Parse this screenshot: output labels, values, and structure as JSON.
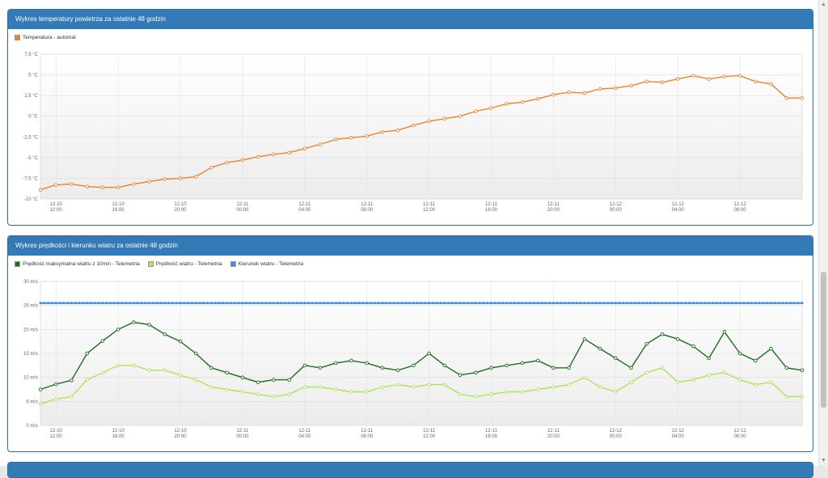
{
  "colors": {
    "header": "#337ab7",
    "temp": "#e8842f",
    "wind_max": "#1e6b1e",
    "wind": "#aee35a",
    "direction": "#3a8ee6"
  },
  "panel1": {
    "title": "Wykres temperatury powietrza za ostatnie 48 godzin",
    "legend": [
      "Temperatura - automat"
    ]
  },
  "panel2": {
    "title": "Wykres prędkości i kierunku wiatru za ostatnie 48 godzin",
    "legend": [
      "Prędkość maksymalna wiatru z 10min - Telemetria",
      "Prędkość wiatru - Telemetria",
      "Kierunek wiatru - Telemetria"
    ]
  },
  "chart_data": [
    {
      "type": "line",
      "title": "Wykres temperatury powietrza za ostatnie 48 godzin",
      "x_ticks": [
        [
          "12-10",
          "12:00"
        ],
        [
          "12-10",
          "16:00"
        ],
        [
          "12-10",
          "20:00"
        ],
        [
          "12-11",
          "00:00"
        ],
        [
          "12-11",
          "04:00"
        ],
        [
          "12-11",
          "08:00"
        ],
        [
          "12-11",
          "12:00"
        ],
        [
          "12-11",
          "16:00"
        ],
        [
          "12-11",
          "20:00"
        ],
        [
          "12-12",
          "00:00"
        ],
        [
          "12-12",
          "04:00"
        ],
        [
          "12-12",
          "08:00"
        ]
      ],
      "y_ticks": [
        "7,5 °C",
        "5 °C",
        "2,5 °C",
        "0 °C",
        "-2,5 °C",
        "-5 °C",
        "-7,5 °C",
        "-10 °C"
      ],
      "ylim": [
        -10,
        7.5
      ],
      "x_hours": [
        11,
        60
      ],
      "grid": true,
      "legend_position": "top-left",
      "series": [
        {
          "name": "Temperatura - automat",
          "color": "#e8842f",
          "x": [
            11,
            12,
            13,
            14,
            15,
            16,
            17,
            18,
            19,
            20,
            21,
            22,
            23,
            24,
            25,
            26,
            27,
            28,
            29,
            30,
            31,
            32,
            33,
            34,
            35,
            36,
            37,
            38,
            39,
            40,
            41,
            42,
            43,
            44,
            45,
            46,
            47,
            48,
            49,
            50,
            51,
            52,
            53,
            54,
            55,
            56,
            57,
            58,
            59,
            60
          ],
          "values": [
            -8.9,
            -8.3,
            -8.2,
            -8.5,
            -8.6,
            -8.6,
            -8.2,
            -7.9,
            -7.6,
            -7.5,
            -7.3,
            -6.2,
            -5.6,
            -5.3,
            -4.9,
            -4.6,
            -4.4,
            -3.9,
            -3.4,
            -2.8,
            -2.6,
            -2.4,
            -1.9,
            -1.7,
            -1.1,
            -0.6,
            -0.3,
            0.0,
            0.6,
            1.0,
            1.5,
            1.7,
            2.1,
            2.6,
            2.9,
            2.8,
            3.3,
            3.4,
            3.7,
            4.2,
            4.1,
            4.5,
            4.9,
            4.5,
            4.8,
            4.9,
            4.2,
            3.9,
            2.2,
            2.2
          ]
        }
      ]
    },
    {
      "type": "line",
      "title": "Wykres prędkości i kierunku wiatru za ostatnie 48 godzin",
      "x_ticks": [
        [
          "12-10",
          "12:00"
        ],
        [
          "12-10",
          "16:00"
        ],
        [
          "12-10",
          "20:00"
        ],
        [
          "12-11",
          "00:00"
        ],
        [
          "12-11",
          "04:00"
        ],
        [
          "12-11",
          "08:00"
        ],
        [
          "12-11",
          "12:00"
        ],
        [
          "12-11",
          "16:00"
        ],
        [
          "12-11",
          "20:00"
        ],
        [
          "12-12",
          "00:00"
        ],
        [
          "12-12",
          "04:00"
        ],
        [
          "12-12",
          "08:00"
        ]
      ],
      "y_ticks": [
        "30 m/s",
        "25 m/s",
        "20 m/s",
        "15 m/s",
        "10 m/s",
        "5 m/s",
        "0 m/s"
      ],
      "ylim": [
        0,
        30
      ],
      "x_hours": [
        11,
        60
      ],
      "grid": true,
      "legend_position": "top-left",
      "series": [
        {
          "name": "Prędkość maksymalna wiatru z 10min - Telemetria",
          "color": "#1e6b1e",
          "x": [
            11,
            12,
            13,
            14,
            15,
            16,
            17,
            18,
            19,
            20,
            21,
            22,
            23,
            24,
            25,
            26,
            27,
            28,
            29,
            30,
            31,
            32,
            33,
            34,
            35,
            36,
            37,
            38,
            39,
            40,
            41,
            42,
            43,
            44,
            45,
            46,
            47,
            48,
            49,
            50,
            51,
            52,
            53,
            54,
            55,
            56,
            57,
            58,
            59,
            60
          ],
          "values": [
            7.5,
            8.6,
            9.4,
            15,
            17.6,
            20,
            21.5,
            21,
            19,
            17.5,
            15,
            12,
            11,
            10,
            9,
            9.5,
            9.5,
            12.5,
            12,
            13,
            13.5,
            13,
            12,
            11.5,
            12.5,
            15,
            12.5,
            10.5,
            11,
            12,
            12.5,
            13,
            13.5,
            12,
            12,
            18,
            16,
            14,
            12,
            17,
            19,
            18,
            16.5,
            14,
            19.5,
            15,
            13.5,
            16,
            12,
            11.5
          ]
        },
        {
          "name": "Prędkość wiatru - Telemetria",
          "color": "#aee35a",
          "x": [
            11,
            12,
            13,
            14,
            15,
            16,
            17,
            18,
            19,
            20,
            21,
            22,
            23,
            24,
            25,
            26,
            27,
            28,
            29,
            30,
            31,
            32,
            33,
            34,
            35,
            36,
            37,
            38,
            39,
            40,
            41,
            42,
            43,
            44,
            45,
            46,
            47,
            48,
            49,
            50,
            51,
            52,
            53,
            54,
            55,
            56,
            57,
            58,
            59,
            60
          ],
          "values": [
            4.5,
            5.5,
            6,
            9.5,
            11,
            12.5,
            12.5,
            11.5,
            11.5,
            10.5,
            9.5,
            8,
            7.5,
            7,
            6.5,
            6,
            6.5,
            8,
            8,
            7.5,
            7,
            7,
            8,
            8.5,
            8,
            8.5,
            8.5,
            6.5,
            6,
            6.5,
            7,
            7,
            7.5,
            8,
            8.5,
            10,
            8,
            7,
            9,
            11,
            12,
            9,
            9.5,
            10.5,
            11,
            9.5,
            8.5,
            9,
            6,
            6
          ]
        },
        {
          "name": "Kierunek wiatru - Telemetria",
          "color": "#3a8ee6",
          "x": [
            11,
            60
          ],
          "values": [
            25.5,
            25.5
          ]
        }
      ]
    }
  ]
}
